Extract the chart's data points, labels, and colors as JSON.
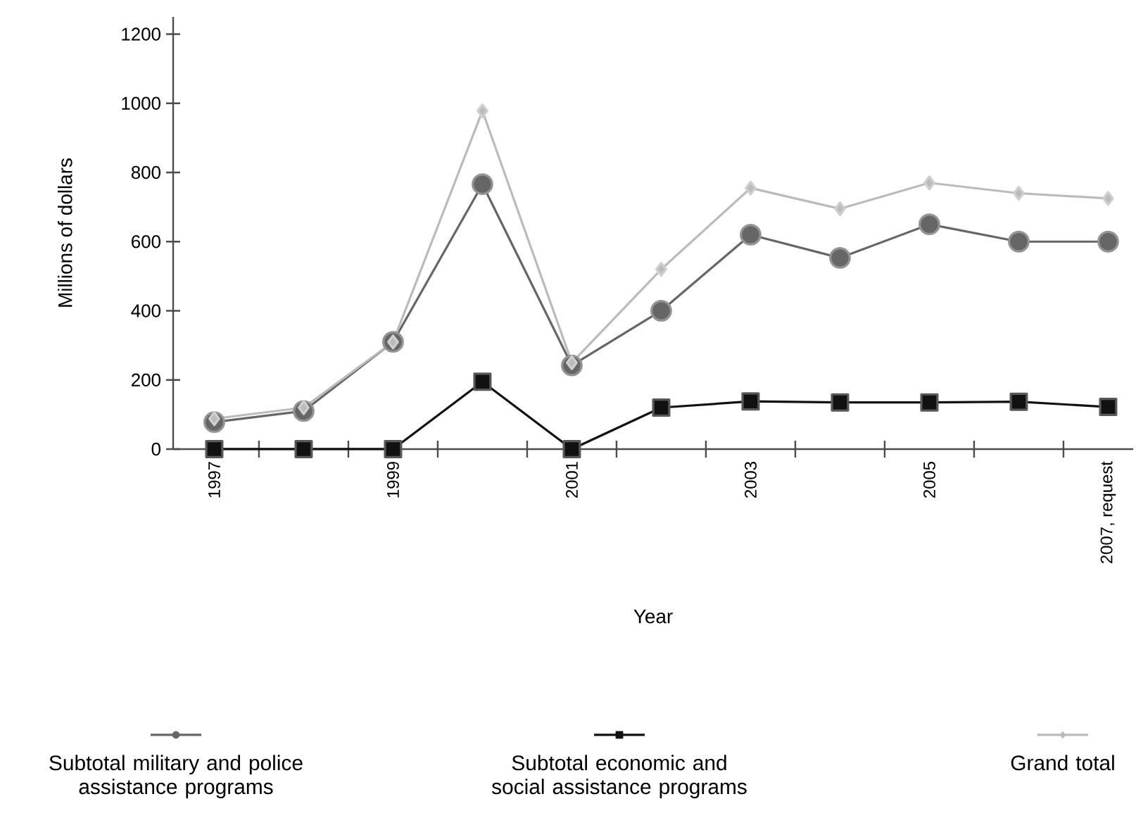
{
  "chart_data": {
    "type": "line",
    "xlabel": "Year",
    "ylabel": "Millions of dollars",
    "categories": [
      "1997",
      null,
      "1999",
      null,
      "2001",
      null,
      "2003",
      null,
      "2005",
      null,
      "2007, request"
    ],
    "series": [
      {
        "name": "Subtotal military and police assistance programs",
        "color": "#666666",
        "marker": "circle",
        "values": [
          78,
          110,
          310,
          766,
          242,
          400,
          620,
          553,
          650,
          600,
          600
        ]
      },
      {
        "name": "Subtotal economic and social assistance programs",
        "color": "#111111",
        "marker": "square",
        "values": [
          0,
          0,
          0,
          195,
          0,
          120,
          138,
          135,
          135,
          137,
          122
        ]
      },
      {
        "name": "Grand total",
        "color": "#bbbbbb",
        "marker": "diamond",
        "values": [
          88,
          120,
          310,
          978,
          250,
          520,
          755,
          695,
          770,
          740,
          725
        ]
      }
    ],
    "ylim": [
      0,
      1250
    ],
    "yticks": [
      0,
      200,
      400,
      600,
      800,
      1000,
      1200
    ],
    "grid": false,
    "legend": "bottom",
    "line_style": "solid"
  }
}
